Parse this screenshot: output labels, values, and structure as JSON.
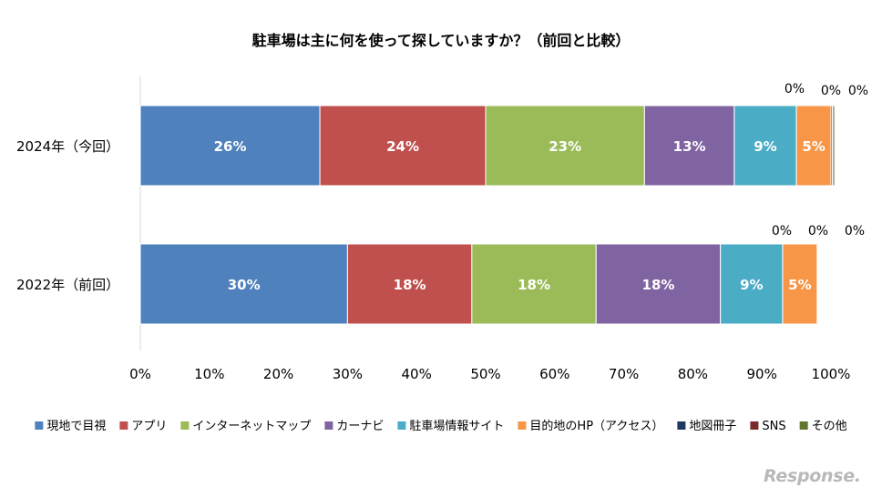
{
  "chart_data": {
    "type": "bar",
    "orientation": "horizontal",
    "stacked": true,
    "title": "駐車場は主に何を使って探していますか？（前回と比較）",
    "categories": [
      "2024年（今回）",
      "2022年（前回）"
    ],
    "x_ticks": [
      "0%",
      "10%",
      "20%",
      "30%",
      "40%",
      "50%",
      "60%",
      "70%",
      "80%",
      "90%",
      "100%"
    ],
    "xlim": [
      0,
      100
    ],
    "grid": false,
    "legend_position": "bottom",
    "series": [
      {
        "name": "現地で目視",
        "color": "#4f81bd",
        "values": [
          26,
          30
        ],
        "labels": [
          "26%",
          "30%"
        ]
      },
      {
        "name": "アプリ",
        "color": "#c0504d",
        "values": [
          24,
          18
        ],
        "labels": [
          "24%",
          "18%"
        ]
      },
      {
        "name": "インターネットマップ",
        "color": "#9bbb59",
        "values": [
          23,
          18
        ],
        "labels": [
          "23%",
          "18%"
        ]
      },
      {
        "name": "カーナビ",
        "color": "#8064a2",
        "values": [
          13,
          18
        ],
        "labels": [
          "13%",
          "18%"
        ]
      },
      {
        "name": "駐車場情報サイト",
        "color": "#4bacc6",
        "values": [
          9,
          9
        ],
        "labels": [
          "9%",
          "9%"
        ]
      },
      {
        "name": "目的地のHP（アクセス）",
        "color": "#f79646",
        "values": [
          5,
          5
        ],
        "labels": [
          "5%",
          "5%"
        ]
      },
      {
        "name": "地図冊子",
        "color": "#1f3864",
        "values": [
          0.2,
          0
        ],
        "labels": [
          "0%",
          "0%"
        ]
      },
      {
        "name": "SNS",
        "color": "#772c2a",
        "values": [
          0.2,
          0
        ],
        "labels": [
          "0%",
          "0%"
        ]
      },
      {
        "name": "その他",
        "color": "#5f7530",
        "values": [
          0.2,
          0
        ],
        "labels": [
          "0%",
          "0%"
        ]
      }
    ]
  },
  "watermark": "Response."
}
